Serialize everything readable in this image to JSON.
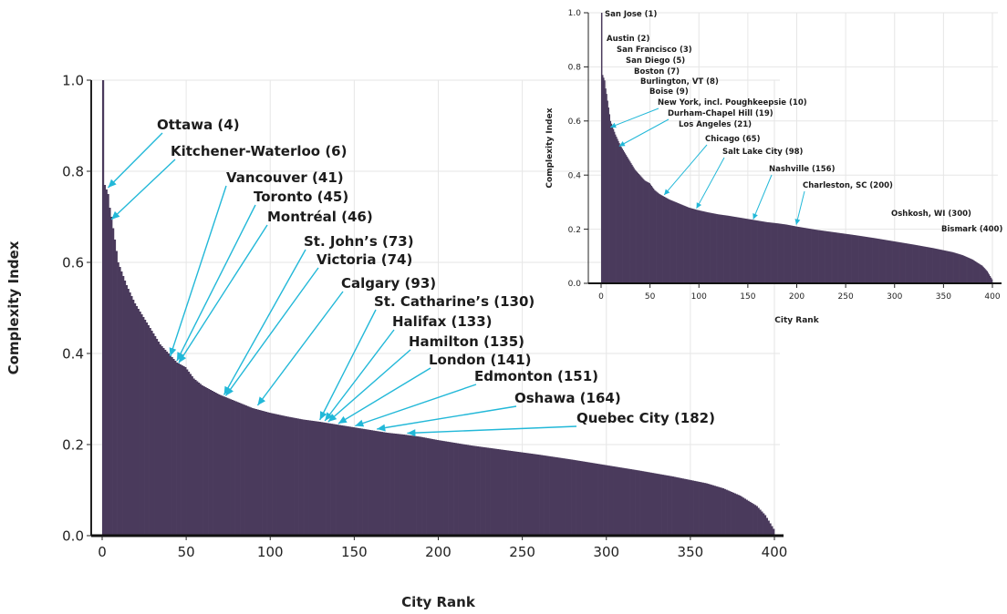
{
  "bar_color": "#4a3a5c",
  "arrow_color": "#22b8d8",
  "chart_data": [
    {
      "type": "bar",
      "xlabel": "City Rank",
      "ylabel": "Complexity Index",
      "xlim": [
        0,
        400
      ],
      "ylim": [
        0,
        1.0
      ],
      "x_ticks": [
        "0",
        "50",
        "100",
        "150",
        "200",
        "250",
        "300",
        "350",
        "400"
      ],
      "y_ticks": [
        "0.0",
        "0.2",
        "0.4",
        "0.6",
        "0.8",
        "1.0"
      ],
      "grid": true,
      "series_profile": {
        "x": [
          1,
          2,
          3,
          4,
          5,
          6,
          8,
          10,
          15,
          20,
          25,
          30,
          35,
          40,
          45,
          50,
          55,
          60,
          70,
          80,
          90,
          100,
          110,
          120,
          130,
          140,
          150,
          160,
          170,
          180,
          190,
          200,
          220,
          240,
          260,
          280,
          300,
          320,
          340,
          360,
          370,
          380,
          390,
          395,
          400
        ],
        "values": [
          1.0,
          0.77,
          0.76,
          0.75,
          0.72,
          0.7,
          0.65,
          0.6,
          0.55,
          0.51,
          0.48,
          0.45,
          0.42,
          0.4,
          0.38,
          0.37,
          0.345,
          0.33,
          0.31,
          0.295,
          0.28,
          0.27,
          0.262,
          0.255,
          0.25,
          0.244,
          0.238,
          0.232,
          0.226,
          0.222,
          0.217,
          0.21,
          0.198,
          0.188,
          0.178,
          0.167,
          0.155,
          0.143,
          0.13,
          0.115,
          0.104,
          0.088,
          0.065,
          0.045,
          0.015
        ]
      },
      "annotations": [
        {
          "label": "Ottawa (4)",
          "x": 4,
          "y": 0.76
        },
        {
          "label": "Kitchener-Waterloo (6)",
          "x": 6,
          "y": 0.69
        },
        {
          "label": "Vancouver (41)",
          "x": 41,
          "y": 0.39
        },
        {
          "label": "Toronto (45)",
          "x": 45,
          "y": 0.38
        },
        {
          "label": "Montréal (46)",
          "x": 46,
          "y": 0.375
        },
        {
          "label": "St. John’s (73)",
          "x": 73,
          "y": 0.305
        },
        {
          "label": "Victoria (74)",
          "x": 74,
          "y": 0.303
        },
        {
          "label": "Calgary (93)",
          "x": 93,
          "y": 0.282
        },
        {
          "label": "St. Catharine’s (130)",
          "x": 130,
          "y": 0.25
        },
        {
          "label": "Halifax (133)",
          "x": 133,
          "y": 0.248
        },
        {
          "label": "Hamilton (135)",
          "x": 135,
          "y": 0.246
        },
        {
          "label": "London (141)",
          "x": 141,
          "y": 0.242
        },
        {
          "label": "Edmonton (151)",
          "x": 151,
          "y": 0.237
        },
        {
          "label": "Oshawa (164)",
          "x": 164,
          "y": 0.23
        },
        {
          "label": "Quebec City (182)",
          "x": 182,
          "y": 0.221
        }
      ]
    },
    {
      "type": "bar",
      "xlabel": "City Rank",
      "ylabel": "Complexity Index",
      "xlim": [
        0,
        400
      ],
      "ylim": [
        0,
        1.0
      ],
      "x_ticks": [
        "0",
        "50",
        "100",
        "150",
        "200",
        "250",
        "300",
        "350",
        "400"
      ],
      "y_ticks": [
        "0.0",
        "0.2",
        "0.4",
        "0.6",
        "0.8",
        "1.0"
      ],
      "grid": true,
      "annotations": [
        {
          "label": "San Jose (1)",
          "x": 1,
          "y": 1.0
        },
        {
          "label": "Austin (2)",
          "x": 2,
          "y": 0.78
        },
        {
          "label": "San Francisco (3)",
          "x": 3,
          "y": 0.77
        },
        {
          "label": "San Diego (5)",
          "x": 5,
          "y": 0.72
        },
        {
          "label": "Boston (7)",
          "x": 7,
          "y": 0.67
        },
        {
          "label": "Burlington, VT (8)",
          "x": 8,
          "y": 0.65
        },
        {
          "label": "Boise (9)",
          "x": 9,
          "y": 0.62
        },
        {
          "label": "New York, incl. Poughkeepsie (10)",
          "x": 10,
          "y": 0.57
        },
        {
          "label": "Durham-Chapel Hill (19)",
          "x": 19,
          "y": 0.5
        },
        {
          "label": "Los Angeles (21)",
          "x": 21,
          "y": 0.49
        },
        {
          "label": "Chicago (65)",
          "x": 65,
          "y": 0.32
        },
        {
          "label": "Salt Lake City (98)",
          "x": 98,
          "y": 0.27
        },
        {
          "label": "Nashville (156)",
          "x": 156,
          "y": 0.23
        },
        {
          "label": "Charleston, SC (200)",
          "x": 200,
          "y": 0.21
        },
        {
          "label": "Oshkosh, WI (300)",
          "x": 300,
          "y": 0.155
        },
        {
          "label": "Bismark (400)",
          "x": 400,
          "y": 0.015
        }
      ]
    }
  ]
}
